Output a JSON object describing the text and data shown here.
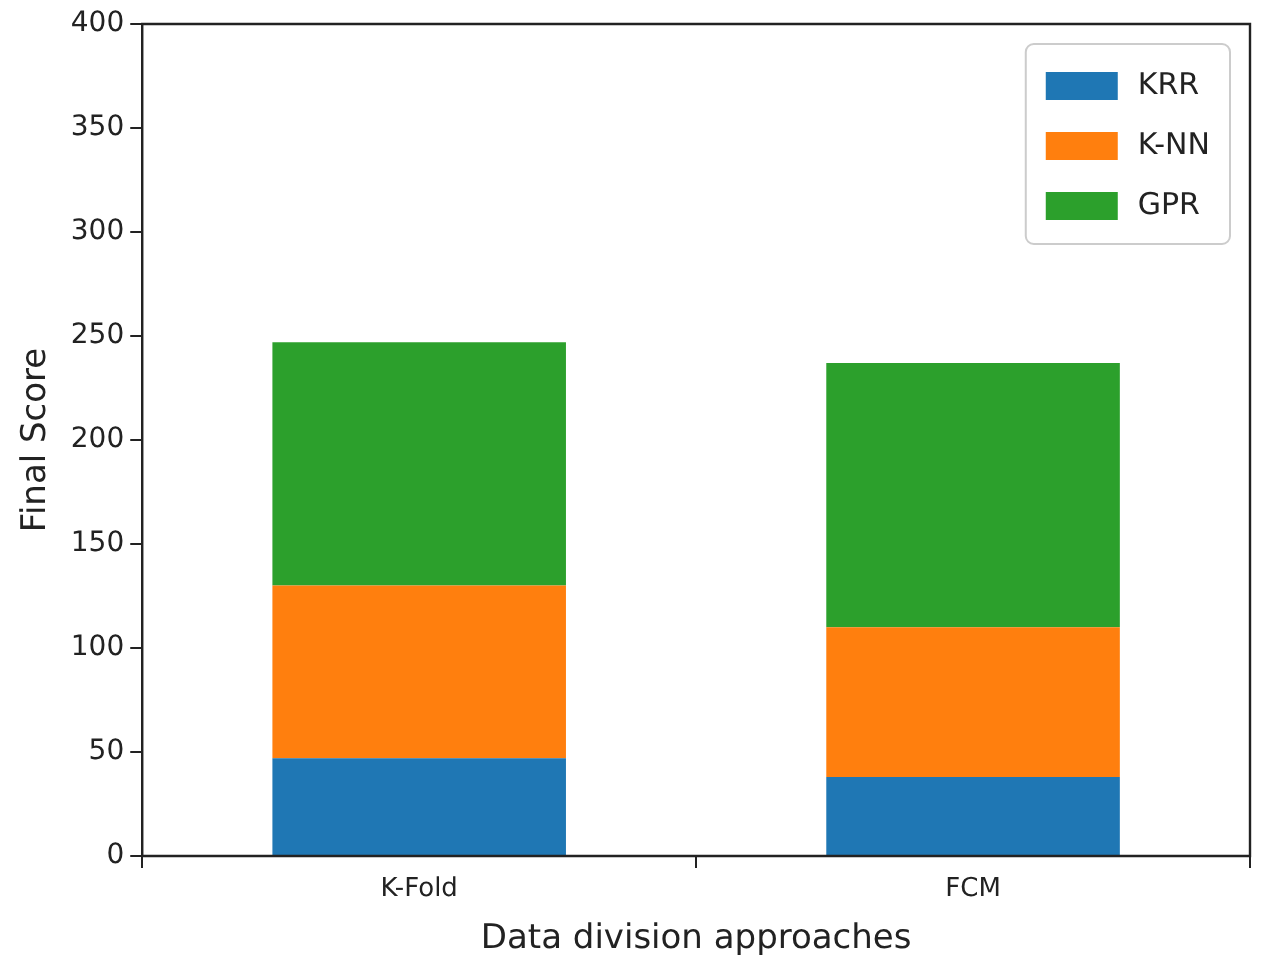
{
  "chart_data": {
    "type": "bar",
    "stacked": true,
    "xlabel": "Data division approaches",
    "ylabel": "Final Score",
    "categories": [
      "K-Fold",
      "FCM"
    ],
    "series": [
      {
        "name": "KRR",
        "color": "#1f77b4",
        "values": [
          47,
          38
        ]
      },
      {
        "name": "K-NN",
        "color": "#ff7f0e",
        "values": [
          83,
          72
        ]
      },
      {
        "name": "GPR",
        "color": "#2ca02c",
        "values": [
          117,
          127
        ]
      }
    ],
    "ylim": [
      0,
      400
    ],
    "yticks": [
      0,
      50,
      100,
      150,
      200,
      250,
      300,
      350,
      400
    ],
    "grid": false,
    "legend": "top right"
  }
}
